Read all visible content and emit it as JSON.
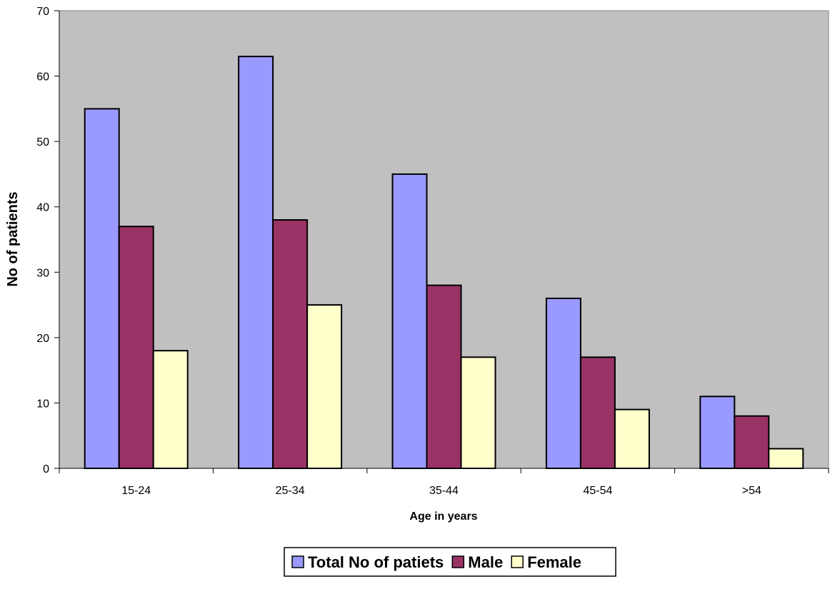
{
  "chart_data": {
    "type": "bar",
    "title": "",
    "xlabel": "Age in years",
    "ylabel": "No of patients",
    "categories": [
      "15-24",
      "25-34",
      "35-44",
      "45-54",
      ">54"
    ],
    "series": [
      {
        "name": "Total No of patiets",
        "values": [
          55,
          63,
          45,
          26,
          11
        ],
        "color": "#9999ff"
      },
      {
        "name": "Male",
        "values": [
          37,
          38,
          28,
          17,
          8
        ],
        "color": "#993366"
      },
      {
        "name": "Female",
        "values": [
          18,
          25,
          17,
          9,
          3
        ],
        "color": "#ffffcc"
      }
    ],
    "ylim": [
      0,
      70
    ],
    "yticks": [
      "0",
      "10",
      "20",
      "30",
      "40",
      "50",
      "60",
      "70"
    ],
    "grid": false,
    "plot_background": "#c0c0c0",
    "legend_position": "bottom"
  }
}
